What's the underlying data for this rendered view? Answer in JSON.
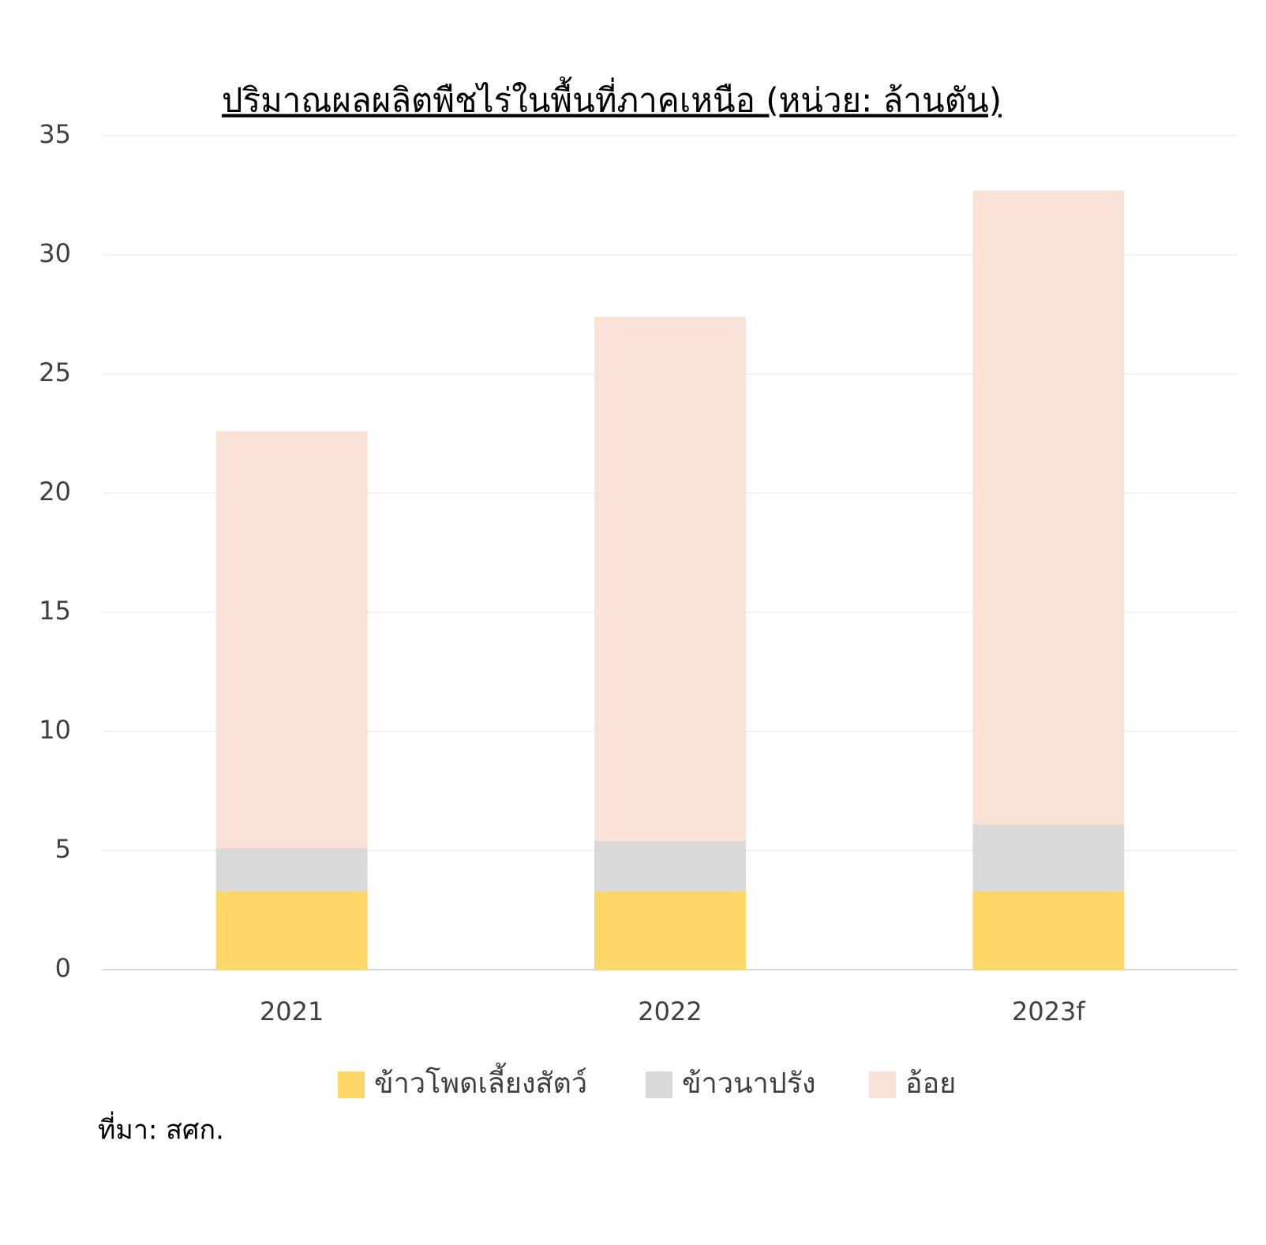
{
  "chart_data": {
    "type": "stacked_bar",
    "title": "ปริมาณผลผลิตพืชไร่ในพื้นที่ภาคเหนือ  (หน่วย: ล้านตัน)",
    "categories": [
      "2021",
      "2022",
      "2023f"
    ],
    "series": [
      {
        "name": "ข้าวโพดเลี้ยงสัตว์",
        "color": "#fdd868",
        "values": [
          3.3,
          3.3,
          3.3
        ]
      },
      {
        "name": "ข้าวนาปรัง",
        "color": "#d9d9d9",
        "values": [
          1.8,
          2.1,
          2.8
        ]
      },
      {
        "name": "อ้อย",
        "color": "#fae3d6",
        "values": [
          17.5,
          22.0,
          26.6
        ]
      }
    ],
    "ylim": [
      0,
      35
    ],
    "yticks": [
      0,
      5,
      10,
      15,
      20,
      25,
      30,
      35
    ],
    "grid": true,
    "legend": "bottom",
    "source": "ที่มา: สศก."
  }
}
